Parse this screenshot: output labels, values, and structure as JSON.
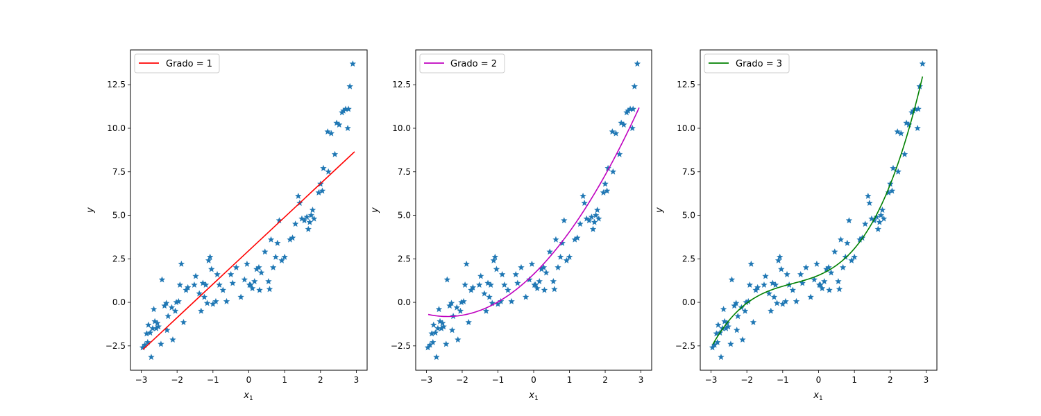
{
  "figure": {
    "background": "#ffffff"
  },
  "chart_data": [
    {
      "type": "scatter",
      "xlabel_base": "x",
      "xlabel_sub": "1",
      "ylabel": "y",
      "xlim": [
        -3.3,
        3.3
      ],
      "ylim": [
        -3.9,
        14.5
      ],
      "xticks": [
        -3,
        -2,
        -1,
        0,
        1,
        2,
        3
      ],
      "yticks": [
        -2.5,
        0.0,
        2.5,
        5.0,
        7.5,
        10.0,
        12.5
      ],
      "ytick_labels": [
        "−2.5",
        "0.0",
        "2.5",
        "5.0",
        "7.5",
        "10.0",
        "12.5"
      ],
      "xtick_labels": [
        "−3",
        "−2",
        "−1",
        "0",
        "1",
        "2",
        "3"
      ],
      "legend": {
        "label": "Grado = 1",
        "color": "#ff0000",
        "position": "upper left"
      },
      "series": [
        {
          "kind": "markers",
          "marker": "star",
          "color": "#1f77b4"
        },
        {
          "kind": "fit",
          "name": "Grado = 1",
          "color": "#ff0000",
          "degree": 1,
          "x_range": [
            -2.95,
            2.95
          ]
        }
      ]
    },
    {
      "type": "scatter",
      "xlabel_base": "x",
      "xlabel_sub": "1",
      "ylabel": "y",
      "xlim": [
        -3.3,
        3.3
      ],
      "ylim": [
        -3.9,
        14.5
      ],
      "xticks": [
        -3,
        -2,
        -1,
        0,
        1,
        2,
        3
      ],
      "yticks": [
        -2.5,
        0.0,
        2.5,
        5.0,
        7.5,
        10.0,
        12.5
      ],
      "ytick_labels": [
        "−2.5",
        "0.0",
        "2.5",
        "5.0",
        "7.5",
        "10.0",
        "12.5"
      ],
      "xtick_labels": [
        "−3",
        "−2",
        "−1",
        "0",
        "1",
        "2",
        "3"
      ],
      "legend": {
        "label": "Grado = 2",
        "color": "#bf00bf",
        "position": "upper left"
      },
      "series": [
        {
          "kind": "markers",
          "marker": "star",
          "color": "#1f77b4"
        },
        {
          "kind": "fit",
          "name": "Grado = 2",
          "color": "#bf00bf",
          "degree": 2,
          "x_range": [
            -2.95,
            2.95
          ]
        }
      ]
    },
    {
      "type": "scatter",
      "xlabel_base": "x",
      "xlabel_sub": "1",
      "ylabel": "y",
      "xlim": [
        -3.3,
        3.3
      ],
      "ylim": [
        -3.9,
        14.5
      ],
      "xticks": [
        -3,
        -2,
        -1,
        0,
        1,
        2,
        3
      ],
      "yticks": [
        -2.5,
        0.0,
        2.5,
        5.0,
        7.5,
        10.0,
        12.5
      ],
      "ytick_labels": [
        "−2.5",
        "0.0",
        "2.5",
        "5.0",
        "7.5",
        "10.0",
        "12.5"
      ],
      "xtick_labels": [
        "−3",
        "−2",
        "−1",
        "0",
        "1",
        "2",
        "3"
      ],
      "legend": {
        "label": "Grado = 3",
        "color": "#008000",
        "position": "upper left"
      },
      "series": [
        {
          "kind": "markers",
          "marker": "star",
          "color": "#1f77b4"
        },
        {
          "kind": "fit",
          "name": "Grado = 3",
          "color": "#008000",
          "degree": 3,
          "x_range": [
            -2.95,
            2.9
          ]
        }
      ]
    }
  ],
  "points": [
    [
      -2.96,
      -2.6
    ],
    [
      -2.9,
      -2.45
    ],
    [
      -2.85,
      -1.8
    ],
    [
      -2.82,
      -2.3
    ],
    [
      -2.8,
      -1.3
    ],
    [
      -2.75,
      -1.75
    ],
    [
      -2.72,
      -3.15
    ],
    [
      -2.68,
      -1.5
    ],
    [
      -2.65,
      -0.4
    ],
    [
      -2.62,
      -1.1
    ],
    [
      -2.58,
      -1.5
    ],
    [
      -2.55,
      -1.2
    ],
    [
      -2.52,
      -1.4
    ],
    [
      -2.45,
      -2.4
    ],
    [
      -2.42,
      1.3
    ],
    [
      -2.35,
      -0.2
    ],
    [
      -2.3,
      -0.05
    ],
    [
      -2.28,
      -1.6
    ],
    [
      -2.25,
      -0.8
    ],
    [
      -2.15,
      -0.3
    ],
    [
      -2.12,
      -2.15
    ],
    [
      -2.05,
      -0.5
    ],
    [
      -2.02,
      0.0
    ],
    [
      -1.96,
      0.05
    ],
    [
      -1.92,
      1.0
    ],
    [
      -1.88,
      2.2
    ],
    [
      -1.82,
      -1.15
    ],
    [
      -1.75,
      0.7
    ],
    [
      -1.7,
      0.85
    ],
    [
      -1.52,
      1.0
    ],
    [
      -1.48,
      1.5
    ],
    [
      -1.38,
      0.5
    ],
    [
      -1.33,
      -0.5
    ],
    [
      -1.28,
      1.1
    ],
    [
      -1.24,
      0.3
    ],
    [
      -1.2,
      1.0
    ],
    [
      -1.16,
      -0.05
    ],
    [
      -1.12,
      2.4
    ],
    [
      -1.08,
      2.6
    ],
    [
      -1.04,
      1.9
    ],
    [
      -1.0,
      -0.1
    ],
    [
      -0.92,
      0.05
    ],
    [
      -0.88,
      1.6
    ],
    [
      -0.82,
      1.0
    ],
    [
      -0.72,
      0.7
    ],
    [
      -0.62,
      0.05
    ],
    [
      -0.5,
      1.6
    ],
    [
      -0.45,
      1.1
    ],
    [
      -0.35,
      2.0
    ],
    [
      -0.22,
      0.3
    ],
    [
      -0.12,
      1.3
    ],
    [
      -0.05,
      2.2
    ],
    [
      0.02,
      1.0
    ],
    [
      0.05,
      1.0
    ],
    [
      0.1,
      0.8
    ],
    [
      0.16,
      1.2
    ],
    [
      0.22,
      1.9
    ],
    [
      0.28,
      2.0
    ],
    [
      0.3,
      0.7
    ],
    [
      0.35,
      1.7
    ],
    [
      0.45,
      2.9
    ],
    [
      0.55,
      1.2
    ],
    [
      0.58,
      0.75
    ],
    [
      0.62,
      3.6
    ],
    [
      0.68,
      2.0
    ],
    [
      0.75,
      2.6
    ],
    [
      0.8,
      3.4
    ],
    [
      0.85,
      4.7
    ],
    [
      0.92,
      2.4
    ],
    [
      1.0,
      2.6
    ],
    [
      1.15,
      3.6
    ],
    [
      1.22,
      3.7
    ],
    [
      1.3,
      4.5
    ],
    [
      1.38,
      6.1
    ],
    [
      1.42,
      5.7
    ],
    [
      1.48,
      4.8
    ],
    [
      1.55,
      4.7
    ],
    [
      1.62,
      4.9
    ],
    [
      1.66,
      4.2
    ],
    [
      1.7,
      4.6
    ],
    [
      1.74,
      5.0
    ],
    [
      1.78,
      5.3
    ],
    [
      1.82,
      4.8
    ],
    [
      1.95,
      6.3
    ],
    [
      2.0,
      6.8
    ],
    [
      2.05,
      6.4
    ],
    [
      2.08,
      7.7
    ],
    [
      2.2,
      9.8
    ],
    [
      2.22,
      7.5
    ],
    [
      2.3,
      9.7
    ],
    [
      2.4,
      8.5
    ],
    [
      2.45,
      10.3
    ],
    [
      2.52,
      10.2
    ],
    [
      2.6,
      10.9
    ],
    [
      2.64,
      11.0
    ],
    [
      2.7,
      11.1
    ],
    [
      2.76,
      10.0
    ],
    [
      2.78,
      11.1
    ],
    [
      2.82,
      12.4
    ],
    [
      2.9,
      13.7
    ]
  ]
}
